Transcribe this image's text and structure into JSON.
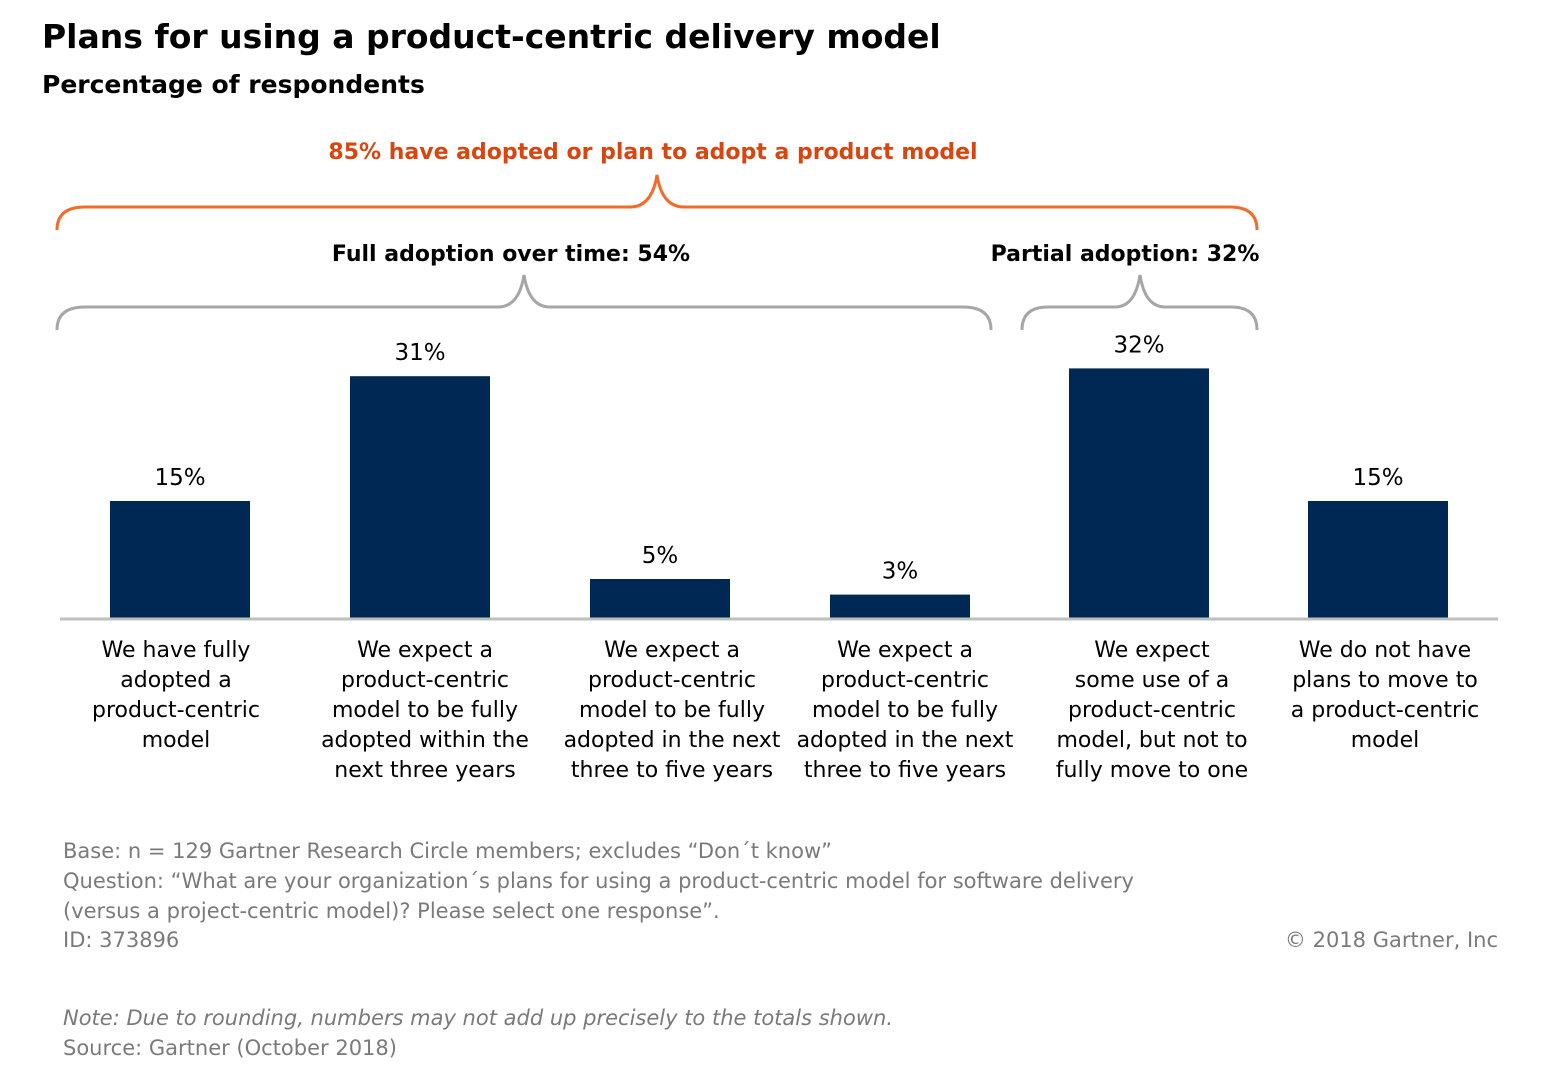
{
  "chart_data": {
    "type": "bar",
    "title": "Plans for using a product-centric delivery model",
    "subtitle": "Percentage of respondents",
    "unit": "%",
    "ylim": [
      0,
      35
    ],
    "grid": false,
    "categories": [
      [
        "We have fully",
        "adopted a",
        "product-centric",
        "model"
      ],
      [
        "We expect a",
        "product-centric",
        "model to be fully",
        "adopted within the",
        "next three years"
      ],
      [
        "We expect a",
        "product-centric",
        "model to be fully",
        "adopted in the next",
        "three to five years"
      ],
      [
        "We expect a",
        "product-centric",
        "model to be fully",
        "adopted in the next",
        "three to five years"
      ],
      [
        "We expect",
        "some use of a",
        "product-centric",
        "model, but not to",
        "fully move to one"
      ],
      [
        "We do not have",
        "plans to move to",
        "a product-centric",
        "model"
      ]
    ],
    "values": [
      15,
      31,
      5,
      3,
      32,
      15
    ],
    "data_labels": [
      "15%",
      "31%",
      "5%",
      "3%",
      "32%",
      "15%"
    ],
    "bar_color": "#002855",
    "annotations": {
      "total": {
        "text": "85% have adopted or plan to adopt a product model",
        "color": "#d9450f",
        "span": [
          0,
          4
        ]
      },
      "full": {
        "text": "Full adoption over time: 54%",
        "color": "#a6a6a6",
        "span": [
          0,
          3
        ]
      },
      "partial": {
        "text": "Partial adoption: 32%",
        "color": "#a6a6a6",
        "span": [
          4,
          4
        ]
      }
    }
  },
  "footer": {
    "base": "Base: n = 129 Gartner Research Circle members; excludes “Don´t know”",
    "question_1": "Question: “What are your organization´s plans for using a product-centric model for software delivery",
    "question_2": "(versus a project-centric model)? Please select one response”.",
    "id": "ID: 373896",
    "copyright": "© 2018 Gartner, Inc",
    "note": "Note: Due to rounding, numbers may not add up precisely to the totals shown.",
    "source": "Source: Gartner (October 2018)"
  }
}
